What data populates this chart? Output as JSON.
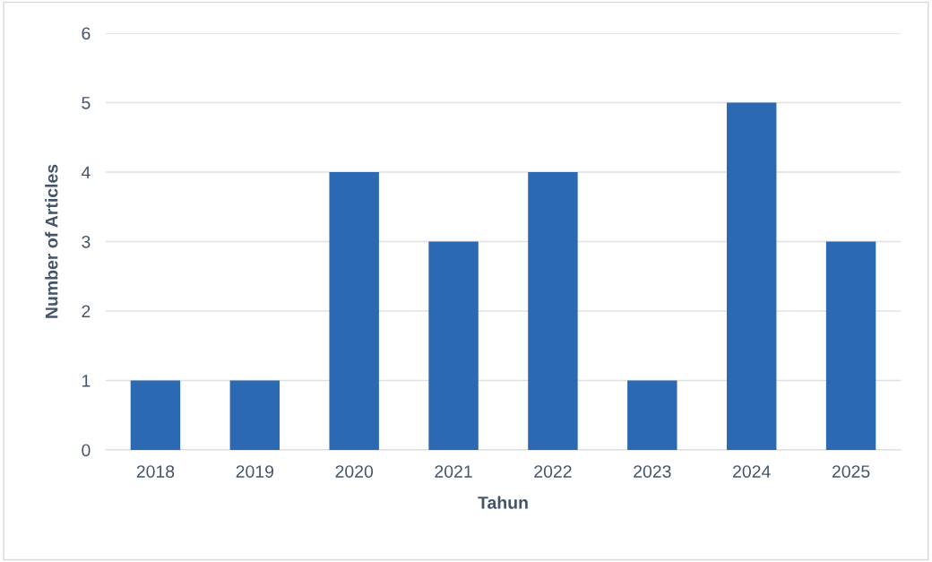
{
  "chart_data": {
    "type": "bar",
    "xlabel": "Tahun",
    "ylabel": "Number of Articles",
    "categories": [
      "2018",
      "2019",
      "2020",
      "2021",
      "2022",
      "2023",
      "2024",
      "2025"
    ],
    "values": [
      1,
      1,
      4,
      3,
      4,
      1,
      5,
      3
    ],
    "color": "#2b69b3",
    "ylim": [
      0,
      6
    ],
    "yticks": [
      0,
      1,
      2,
      3,
      4,
      5,
      6
    ],
    "grid": "y"
  }
}
